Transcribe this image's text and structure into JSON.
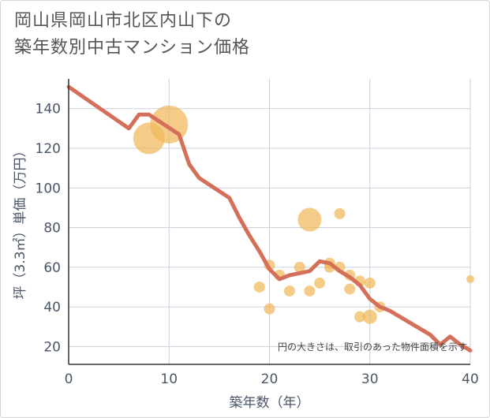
{
  "title_line1": "岡山県岡山市北区内山下の",
  "title_line2": "築年数別中古マンション価格",
  "chart_data": {
    "type": "scatter",
    "xlabel": "築年数（年）",
    "ylabel": "坪（3.3㎡）単価（万円）",
    "xlim": [
      0,
      40
    ],
    "ylim": [
      11,
      155
    ],
    "xticks": [
      "0",
      "10",
      "20",
      "30",
      "40"
    ],
    "yticks": [
      "20",
      "40",
      "60",
      "80",
      "100",
      "120",
      "140"
    ],
    "grid": true,
    "note": "円の大きさは、取引のあった物件面積を示す",
    "colors": {
      "bubble": "#f0b85a",
      "line": "#d4705a",
      "grid": "#c8d0dc"
    },
    "bubbles": [
      {
        "x": 8,
        "y": 125,
        "r": 20
      },
      {
        "x": 10,
        "y": 132,
        "r": 24
      },
      {
        "x": 19,
        "y": 50,
        "r": 7
      },
      {
        "x": 20,
        "y": 39,
        "r": 7
      },
      {
        "x": 20,
        "y": 61,
        "r": 7
      },
      {
        "x": 21,
        "y": 56,
        "r": 7
      },
      {
        "x": 22,
        "y": 48,
        "r": 7
      },
      {
        "x": 23,
        "y": 60,
        "r": 7
      },
      {
        "x": 24,
        "y": 48,
        "r": 7
      },
      {
        "x": 24,
        "y": 84,
        "r": 15
      },
      {
        "x": 25,
        "y": 52,
        "r": 7
      },
      {
        "x": 26,
        "y": 60,
        "r": 7
      },
      {
        "x": 26,
        "y": 62,
        "r": 7
      },
      {
        "x": 27,
        "y": 87,
        "r": 7
      },
      {
        "x": 27,
        "y": 60,
        "r": 7
      },
      {
        "x": 28,
        "y": 49,
        "r": 7
      },
      {
        "x": 28,
        "y": 56,
        "r": 7
      },
      {
        "x": 29,
        "y": 35,
        "r": 7
      },
      {
        "x": 29,
        "y": 53,
        "r": 7
      },
      {
        "x": 30,
        "y": 35,
        "r": 9
      },
      {
        "x": 30,
        "y": 52,
        "r": 7
      },
      {
        "x": 31,
        "y": 40,
        "r": 7
      },
      {
        "x": 40,
        "y": 54,
        "r": 5
      }
    ],
    "line": [
      {
        "x": 0,
        "y": 151
      },
      {
        "x": 6,
        "y": 130
      },
      {
        "x": 7,
        "y": 137
      },
      {
        "x": 8,
        "y": 137
      },
      {
        "x": 11,
        "y": 127
      },
      {
        "x": 12,
        "y": 112
      },
      {
        "x": 13,
        "y": 105
      },
      {
        "x": 16,
        "y": 95
      },
      {
        "x": 17,
        "y": 85
      },
      {
        "x": 18,
        "y": 76
      },
      {
        "x": 19,
        "y": 68
      },
      {
        "x": 20,
        "y": 59
      },
      {
        "x": 21,
        "y": 54
      },
      {
        "x": 22,
        "y": 56
      },
      {
        "x": 23,
        "y": 57
      },
      {
        "x": 24,
        "y": 58
      },
      {
        "x": 25,
        "y": 63
      },
      {
        "x": 26,
        "y": 62
      },
      {
        "x": 27,
        "y": 58
      },
      {
        "x": 28,
        "y": 55
      },
      {
        "x": 29,
        "y": 51
      },
      {
        "x": 30,
        "y": 44
      },
      {
        "x": 31,
        "y": 40
      },
      {
        "x": 32,
        "y": 38
      },
      {
        "x": 33,
        "y": 35
      },
      {
        "x": 34,
        "y": 32
      },
      {
        "x": 35,
        "y": 29
      },
      {
        "x": 36,
        "y": 26
      },
      {
        "x": 37,
        "y": 21
      },
      {
        "x": 38,
        "y": 25
      },
      {
        "x": 39,
        "y": 21
      },
      {
        "x": 40,
        "y": 18
      }
    ]
  }
}
